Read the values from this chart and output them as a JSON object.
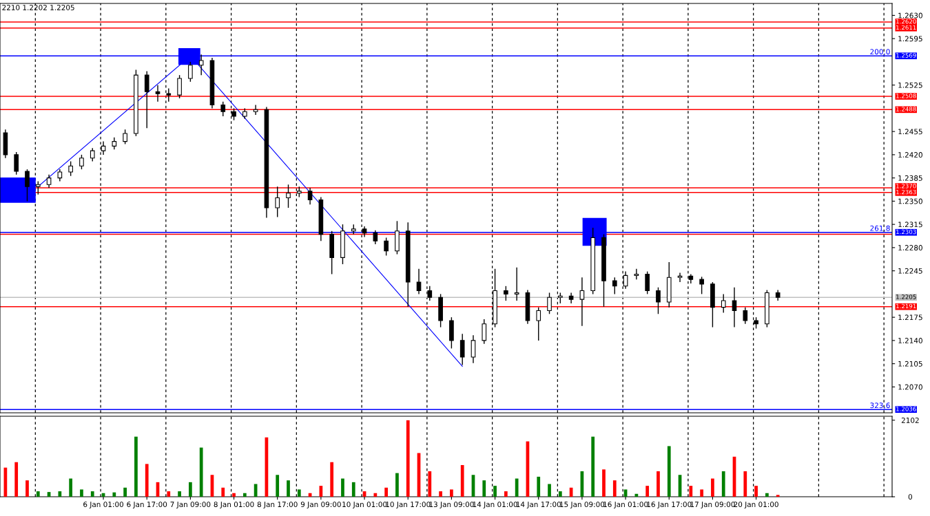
{
  "chart_data": [
    {
      "type": "candlestick",
      "annotations": [
        "2210 1.2202 1.2205",
        {
          "text": "200,0",
          "y": 1.2569
        },
        {
          "text": "261.8",
          "y": 1.2303
        },
        {
          "text": "323,6",
          "y": 1.2036
        }
      ],
      "categories": [
        null,
        null,
        null,
        null,
        null,
        null,
        null,
        null,
        null,
        null,
        null,
        null,
        null,
        null,
        null,
        null,
        null,
        null,
        null,
        null,
        null,
        null,
        null,
        null,
        null,
        null,
        null,
        null,
        null,
        null,
        null,
        null,
        null,
        null,
        null,
        null,
        null,
        null,
        null,
        null,
        null,
        null,
        null,
        null,
        null,
        null,
        null,
        null,
        null,
        null,
        null,
        null,
        null,
        null,
        null,
        null,
        null,
        null,
        null,
        null,
        null,
        null,
        null,
        null,
        null,
        null,
        null,
        null,
        null,
        null,
        null,
        null,
        null,
        null,
        null,
        null,
        null,
        null,
        null,
        null,
        null,
        null
      ],
      "ohlc": [
        [
          1.2453,
          1.2458,
          1.2415,
          1.242
        ],
        [
          1.242,
          1.2424,
          1.239,
          1.2395
        ],
        [
          1.2395,
          1.2398,
          1.235,
          1.2372
        ],
        [
          1.2372,
          1.238,
          1.236,
          1.2375
        ],
        [
          1.2375,
          1.239,
          1.237,
          1.2385
        ],
        [
          1.2385,
          1.2398,
          1.238,
          1.2394
        ],
        [
          1.2394,
          1.241,
          1.2388,
          1.2403
        ],
        [
          1.2403,
          1.242,
          1.2398,
          1.2415
        ],
        [
          1.2415,
          1.243,
          1.241,
          1.2426
        ],
        [
          1.2426,
          1.244,
          1.242,
          1.2433
        ],
        [
          1.2433,
          1.2446,
          1.2428,
          1.244
        ],
        [
          1.244,
          1.2458,
          1.2436,
          1.2452
        ],
        [
          1.2452,
          1.2548,
          1.2448,
          1.254
        ],
        [
          1.254,
          1.2546,
          1.246,
          1.2515
        ],
        [
          1.2515,
          1.2525,
          1.25,
          1.2512
        ],
        [
          1.2512,
          1.252,
          1.25,
          1.251
        ],
        [
          1.251,
          1.254,
          1.2505,
          1.2535
        ],
        [
          1.2535,
          1.256,
          1.253,
          1.2555
        ],
        [
          1.2555,
          1.2571,
          1.254,
          1.2562
        ],
        [
          1.2562,
          1.2566,
          1.249,
          1.2495
        ],
        [
          1.2495,
          1.25,
          1.2478,
          1.2485
        ],
        [
          1.2485,
          1.249,
          1.2472,
          1.2478
        ],
        [
          1.2478,
          1.249,
          1.2474,
          1.2485
        ],
        [
          1.2485,
          1.2495,
          1.248,
          1.2488
        ],
        [
          1.2488,
          1.2492,
          1.2325,
          1.234
        ],
        [
          1.234,
          1.2372,
          1.2326,
          1.2355
        ],
        [
          1.2355,
          1.2375,
          1.234,
          1.2362
        ],
        [
          1.2362,
          1.2372,
          1.2356,
          1.2365
        ],
        [
          1.2365,
          1.237,
          1.2345,
          1.2352
        ],
        [
          1.2352,
          1.2356,
          1.229,
          1.23
        ],
        [
          1.23,
          1.2305,
          1.224,
          1.2265
        ],
        [
          1.2265,
          1.2315,
          1.2255,
          1.2305
        ],
        [
          1.2305,
          1.2315,
          1.23,
          1.2308
        ],
        [
          1.2308,
          1.2312,
          1.2296,
          1.2302
        ],
        [
          1.2302,
          1.2306,
          1.2285,
          1.229
        ],
        [
          1.229,
          1.2295,
          1.2268,
          1.2275
        ],
        [
          1.2275,
          1.232,
          1.227,
          1.2305
        ],
        [
          1.2305,
          1.2318,
          1.2191,
          1.2228
        ],
        [
          1.2228,
          1.2248,
          1.221,
          1.2215
        ],
        [
          1.2215,
          1.2222,
          1.22,
          1.2205
        ],
        [
          1.2205,
          1.221,
          1.216,
          1.217
        ],
        [
          1.217,
          1.2175,
          1.2128,
          1.214
        ],
        [
          1.214,
          1.215,
          1.2103,
          1.2115
        ],
        [
          1.2115,
          1.2148,
          1.2106,
          1.214
        ],
        [
          1.214,
          1.2172,
          1.2135,
          1.2165
        ],
        [
          1.2165,
          1.2248,
          1.216,
          1.2215
        ],
        [
          1.2215,
          1.2222,
          1.22,
          1.221
        ],
        [
          1.221,
          1.225,
          1.22,
          1.2212
        ],
        [
          1.2212,
          1.2216,
          1.2165,
          1.217
        ],
        [
          1.217,
          1.219,
          1.214,
          1.2185
        ],
        [
          1.2185,
          1.2212,
          1.218,
          1.2205
        ],
        [
          1.2205,
          1.2212,
          1.2196,
          1.2207
        ],
        [
          1.2207,
          1.2212,
          1.2196,
          1.2202
        ],
        [
          1.2202,
          1.2235,
          1.2162,
          1.2215
        ],
        [
          1.2215,
          1.231,
          1.221,
          1.2295
        ],
        [
          1.2295,
          1.23,
          1.2191,
          1.223
        ],
        [
          1.223,
          1.2235,
          1.221,
          1.2222
        ],
        [
          1.2222,
          1.2244,
          1.2218,
          1.2238
        ],
        [
          1.2238,
          1.2248,
          1.2232,
          1.224
        ],
        [
          1.224,
          1.2244,
          1.221,
          1.2215
        ],
        [
          1.2215,
          1.222,
          1.218,
          1.2198
        ],
        [
          1.2198,
          1.2258,
          1.219,
          1.2235
        ],
        [
          1.2235,
          1.2242,
          1.2228,
          1.2237
        ],
        [
          1.2237,
          1.224,
          1.2226,
          1.2232
        ],
        [
          1.2232,
          1.2236,
          1.221,
          1.2225
        ],
        [
          1.2225,
          1.2228,
          1.216,
          1.219
        ],
        [
          1.219,
          1.221,
          1.2182,
          1.22
        ],
        [
          1.22,
          1.222,
          1.216,
          1.2185
        ],
        [
          1.2185,
          1.219,
          1.2165,
          1.217
        ],
        [
          1.217,
          1.2175,
          1.2158,
          1.2165
        ],
        [
          1.2165,
          1.2216,
          1.216,
          1.2212
        ],
        [
          1.2212,
          1.2216,
          1.22,
          1.2205
        ],
        null,
        null,
        null,
        null,
        null,
        null,
        null,
        null,
        null,
        null
      ],
      "color": "#000000",
      "series": [
        {
          "type": "line",
          "values": [
            null,
            null,
            null,
            1.2372,
            null,
            null,
            null,
            null,
            null,
            null,
            null,
            null,
            null,
            null,
            null,
            null,
            null,
            1.2569,
            null,
            null,
            null,
            null,
            null,
            null,
            null,
            null,
            null,
            null,
            null,
            null,
            null,
            null,
            null,
            null,
            null,
            null,
            null,
            null,
            null,
            null,
            null,
            null,
            1.2101,
            null,
            null,
            null,
            null,
            null,
            null,
            null,
            null,
            null,
            null,
            null,
            null,
            null,
            null,
            null,
            null,
            null,
            null,
            null,
            null,
            null,
            null,
            null,
            null,
            null,
            null,
            null,
            null,
            null,
            null,
            null,
            null,
            null,
            null,
            null,
            null,
            null,
            null,
            null
          ],
          "color": "#0000ff"
        }
      ],
      "ylim": [
        1.2031,
        1.2648
      ],
      "yticks": [
        {
          "value": 1.263,
          "label": "1.2630"
        },
        1.2595,
        1.2525,
        1.2455,
        {
          "value": 1.242,
          "label": "1.2420"
        },
        1.2385,
        {
          "value": 1.235,
          "label": "1.2350"
        },
        1.2315,
        {
          "value": 1.228,
          "label": "1.2280"
        },
        1.2245,
        1.2175,
        {
          "value": 1.214,
          "label": "1.2140"
        },
        1.2105,
        {
          "value": 1.207,
          "label": "1.2070"
        }
      ],
      "tick_labels": "y",
      "ref_lines": [
        {
          "axis": "y",
          "value": 1.262,
          "label": "1.2620",
          "color": "#ff0000"
        },
        {
          "axis": "y",
          "value": 1.2611,
          "label": "1.2611",
          "color": "#ff0000"
        },
        {
          "axis": "y",
          "value": 1.2569,
          "label": "1.2569",
          "color": "#0000ff"
        },
        {
          "axis": "y",
          "value": 1.2508,
          "label": "1.2508",
          "color": "#ff0000"
        },
        {
          "axis": "y",
          "value": 1.2488,
          "label": "1.2488",
          "color": "#ff0000"
        },
        {
          "axis": "y",
          "value": 1.237,
          "label": "1.2370",
          "color": "#ff0000"
        },
        {
          "axis": "y",
          "value": 1.2363,
          "label": "1.2363",
          "color": "#ff0000"
        },
        {
          "axis": "y",
          "value": 1.23,
          "color": "#ff0000"
        },
        {
          "axis": "y",
          "value": 1.2303,
          "label": "1.2303",
          "color": "#0000ff"
        },
        {
          "axis": "y",
          "value": 1.2205,
          "label": "1.2205",
          "color": "#c0c0c0"
        },
        {
          "axis": "y",
          "value": 1.2191,
          "label": "1.2191",
          "color": "#ff0000"
        },
        {
          "axis": "y",
          "value": 1.2036,
          "label": "1.2036",
          "color": "#0000ff"
        }
      ]
    },
    {
      "type": "bar",
      "categories": [
        null,
        null,
        null,
        null,
        null,
        null,
        null,
        null,
        null,
        "6 Jan 01:00",
        null,
        null,
        null,
        "6 Jan 17:00",
        null,
        null,
        null,
        "7 Jan 09:00",
        null,
        null,
        null,
        "8 Jan 01:00",
        null,
        null,
        null,
        "8 Jan 17:00",
        null,
        null,
        null,
        "9 Jan 09:00",
        null,
        null,
        null,
        "10 Jan 01:00",
        null,
        null,
        null,
        "10 Jan 17:00",
        null,
        null,
        null,
        "13 Jan 09:00",
        null,
        null,
        null,
        "14 Jan 01:00",
        null,
        null,
        null,
        "14 Jan 17:00",
        null,
        null,
        null,
        "15 Jan 09:00",
        null,
        null,
        null,
        "16 Jan 01:00",
        null,
        null,
        null,
        "16 Jan 17:00",
        null,
        null,
        null,
        "17 Jan 09:00",
        null,
        null,
        null,
        "20 Jan 01:00",
        null,
        null,
        null,
        null,
        null,
        null,
        null,
        null,
        null,
        null,
        null,
        null
      ],
      "values": [
        800,
        950,
        450,
        150,
        130,
        150,
        500,
        200,
        150,
        100,
        120,
        250,
        1650,
        900,
        400,
        150,
        150,
        400,
        1350,
        600,
        250,
        100,
        100,
        350,
        1630,
        600,
        450,
        200,
        100,
        300,
        950,
        500,
        400,
        150,
        100,
        250,
        650,
        2100,
        1200,
        700,
        150,
        200,
        870,
        600,
        450,
        300,
        150,
        500,
        1520,
        550,
        350,
        150,
        250,
        700,
        1650,
        750,
        450,
        200,
        80,
        300,
        700,
        1390,
        600,
        300,
        200,
        500,
        700,
        1100,
        700,
        300,
        100,
        50,
        null,
        null,
        null,
        null,
        null,
        null,
        null,
        null,
        null,
        null
      ],
      "colors": [
        "#ff0000",
        "#ff0000",
        "#ff0000",
        "#008000",
        "#008000",
        "#008000",
        "#008000",
        "#008000",
        "#008000",
        "#008000",
        "#008000",
        "#008000",
        "#008000",
        "#ff0000",
        "#ff0000",
        "#ff0000",
        "#008000",
        "#008000",
        "#008000",
        "#ff0000",
        "#ff0000",
        "#ff0000",
        "#008000",
        "#008000",
        "#ff0000",
        "#008000",
        "#008000",
        "#008000",
        "#ff0000",
        "#ff0000",
        "#ff0000",
        "#008000",
        "#008000",
        "#ff0000",
        "#ff0000",
        "#ff0000",
        "#008000",
        "#ff0000",
        "#ff0000",
        "#ff0000",
        "#ff0000",
        "#ff0000",
        "#ff0000",
        "#008000",
        "#008000",
        "#008000",
        "#ff0000",
        "#008000",
        "#ff0000",
        "#008000",
        "#008000",
        "#008000",
        "#ff0000",
        "#008000",
        "#008000",
        "#ff0000",
        "#ff0000",
        "#008000",
        "#008000",
        "#ff0000",
        "#ff0000",
        "#008000",
        "#008000",
        "#ff0000",
        "#ff0000",
        "#ff0000",
        "#008000",
        "#ff0000",
        "#ff0000",
        "#ff0000",
        "#008000",
        "#ff0000",
        null,
        null,
        null,
        null,
        null,
        null,
        null,
        null,
        null,
        null
      ],
      "ylim": [
        0,
        2210
      ],
      "yticks": [
        2102,
        0
      ]
    }
  ]
}
